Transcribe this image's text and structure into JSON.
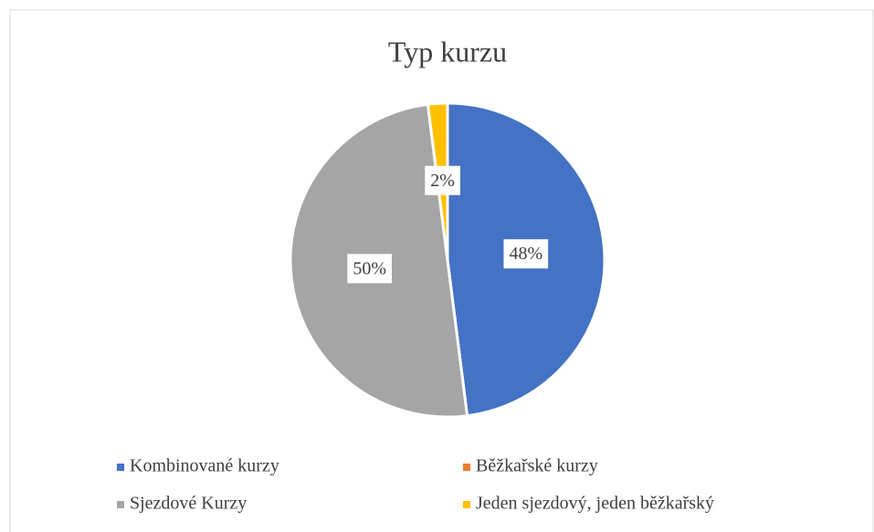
{
  "chart_data": {
    "type": "pie",
    "title": "Typ kurzu",
    "categories": [
      "Kombinované kurzy",
      "Běžkařské kurzy",
      "Sjezdové Kurzy",
      "Jeden sjezdový, jeden běžkařský"
    ],
    "values": [
      48,
      0,
      50,
      2
    ],
    "value_labels": [
      "48%",
      null,
      "50%",
      "2%"
    ],
    "colors": [
      "#4472c4",
      "#ed7d31",
      "#a5a5a5",
      "#ffc000"
    ],
    "legend": "bottom"
  }
}
